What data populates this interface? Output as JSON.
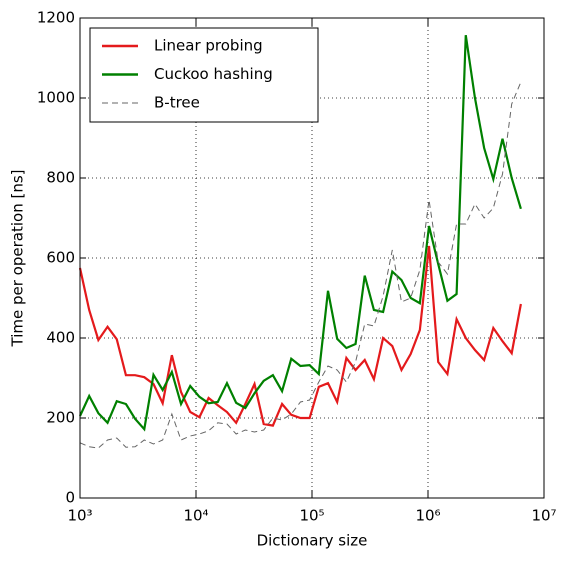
{
  "chart_data": {
    "type": "line",
    "xlabel": "Dictionary size",
    "ylabel": "Time per operation [ns]",
    "xscale": "log",
    "grid": true,
    "legend": "upper left",
    "x": [
      1000,
      1200,
      1440,
      1728,
      2074,
      2488,
      2986,
      3583,
      4300,
      5160,
      6192,
      7430,
      8916,
      10699,
      12839,
      15407,
      18488,
      22186,
      26623,
      31948,
      38338,
      46005,
      55206,
      66247,
      79497,
      95396,
      114475,
      137371,
      164845,
      197814,
      237376,
      284852,
      341822,
      410186,
      492224,
      590668,
      708802,
      850562,
      1020675,
      1224810,
      1469772,
      1763726,
      2116471,
      2539765,
      3047718,
      3657262,
      4388714,
      5266457,
      6319749
    ],
    "xlim": [
      1000,
      10000000
    ],
    "xticks": [
      {
        "value": 1000,
        "label": "10³"
      },
      {
        "value": 10000,
        "label": "10⁴"
      },
      {
        "value": 100000,
        "label": "10⁵"
      },
      {
        "value": 1000000,
        "label": "10⁶"
      },
      {
        "value": 10000000,
        "label": "10⁷"
      }
    ],
    "ylim": [
      0,
      1200
    ],
    "yticks": [
      0,
      200,
      400,
      600,
      800,
      1000,
      1200
    ],
    "series": [
      {
        "name": "Linear probing",
        "color": "#e41a1c",
        "style": "solid",
        "values": [
          575,
          470,
          395,
          428,
          397,
          307,
          307,
          302,
          285,
          237,
          357,
          265,
          215,
          202,
          250,
          232,
          215,
          188,
          235,
          285,
          185,
          181,
          235,
          208,
          200,
          200,
          278,
          287,
          240,
          350,
          320,
          345,
          297,
          400,
          380,
          320,
          360,
          420,
          630,
          340,
          310,
          447,
          400,
          370,
          345,
          425,
          392,
          362,
          485
        ]
      },
      {
        "name": "Cuckoo hashing",
        "color": "#008000",
        "style": "solid",
        "values": [
          205,
          255,
          212,
          188,
          242,
          235,
          198,
          172,
          308,
          270,
          315,
          235,
          280,
          253,
          237,
          240,
          287,
          238,
          225,
          262,
          293,
          307,
          267,
          348,
          330,
          332,
          310,
          518,
          398,
          375,
          385,
          556,
          470,
          465,
          566,
          545,
          500,
          487,
          680,
          585,
          493,
          510,
          1157,
          1000,
          875,
          797,
          898,
          800,
          723
        ]
      },
      {
        "name": "B-tree",
        "color": "#666666",
        "style": "dashed",
        "values": [
          138,
          128,
          125,
          145,
          150,
          127,
          128,
          145,
          135,
          145,
          210,
          145,
          155,
          160,
          168,
          188,
          185,
          160,
          170,
          165,
          170,
          200,
          195,
          210,
          240,
          245,
          290,
          330,
          320,
          290,
          340,
          435,
          430,
          505,
          620,
          490,
          500,
          570,
          745,
          590,
          560,
          685,
          685,
          735,
          700,
          725,
          810,
          985,
          1040
        ]
      }
    ]
  }
}
